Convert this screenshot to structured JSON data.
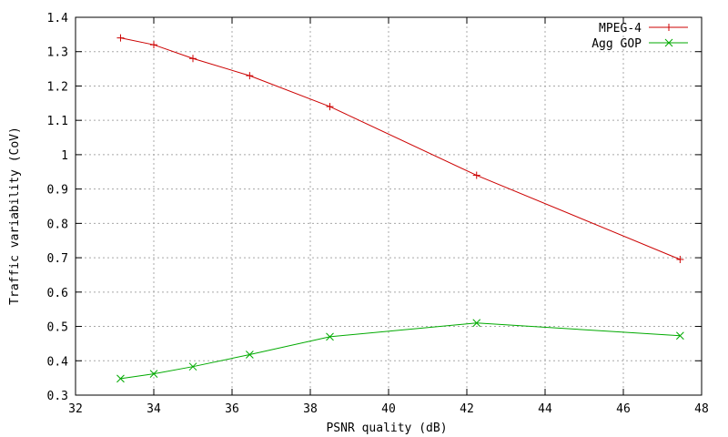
{
  "chart_data": {
    "type": "line",
    "xlabel": "PSNR quality (dB)",
    "ylabel": "Traffic variability (CoV)",
    "xlim": [
      32,
      48
    ],
    "ylim": [
      0.3,
      1.4
    ],
    "xticks": [
      "32",
      "34",
      "36",
      "38",
      "40",
      "42",
      "44",
      "46",
      "48"
    ],
    "yticks": [
      "0.3",
      "0.4",
      "0.5",
      "0.6",
      "0.7",
      "0.8",
      "0.9",
      "1",
      "1.1",
      "1.2",
      "1.3",
      "1.4"
    ],
    "grid": true,
    "legend_position": "top-right",
    "series": [
      {
        "name": "MPEG-4",
        "color": "#cc0000",
        "marker": "plus",
        "x": [
          33.15,
          34.0,
          35.0,
          36.45,
          38.5,
          42.25,
          47.45
        ],
        "y": [
          1.34,
          1.32,
          1.28,
          1.23,
          1.14,
          0.94,
          0.695
        ]
      },
      {
        "name": "Agg GOP",
        "color": "#00aa00",
        "marker": "cross",
        "x": [
          33.15,
          34.0,
          35.0,
          36.45,
          38.5,
          42.25,
          47.45
        ],
        "y": [
          0.348,
          0.362,
          0.383,
          0.418,
          0.47,
          0.51,
          0.473
        ]
      }
    ]
  }
}
